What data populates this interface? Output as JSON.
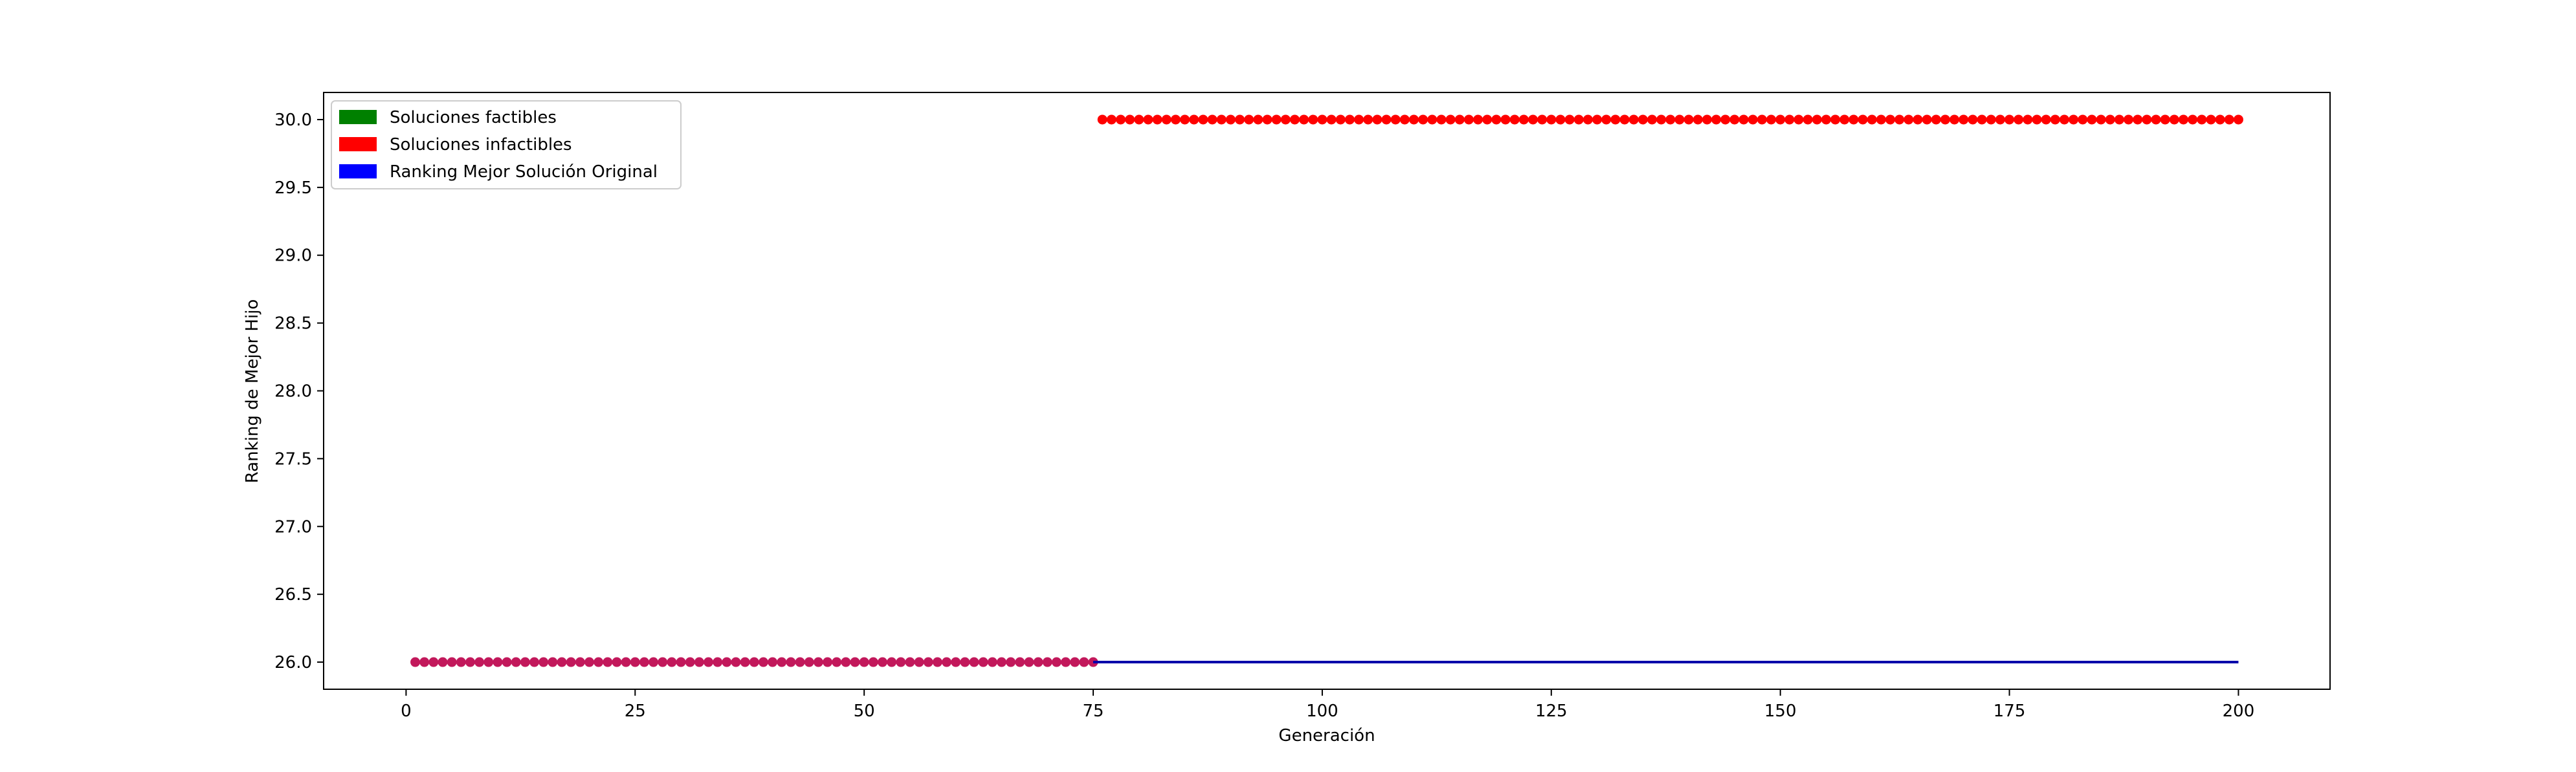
{
  "chart_data": {
    "type": "scatter",
    "title": "",
    "xlabel": "Generación",
    "ylabel": "Ranking de Mejor Hijo",
    "xlim": [
      -9,
      210
    ],
    "ylim": [
      25.8,
      30.2
    ],
    "xticks": [
      0,
      25,
      50,
      75,
      100,
      125,
      150,
      175,
      200
    ],
    "yticks": [
      26.0,
      26.5,
      27.0,
      27.5,
      28.0,
      28.5,
      29.0,
      29.5,
      30.0
    ],
    "ytick_labels": [
      "26.0",
      "26.5",
      "27.0",
      "27.5",
      "28.0",
      "28.5",
      "29.0",
      "29.5",
      "30.0"
    ],
    "grid": false,
    "legend_position": "top-left",
    "legend": [
      {
        "label": "Soluciones factibles",
        "color": "#008000"
      },
      {
        "label": "Soluciones infactibles",
        "color": "#ff0000"
      },
      {
        "label": "Ranking Mejor Solución Original",
        "color": "#0000ff"
      }
    ],
    "series": [
      {
        "kind": "points",
        "color": "#c2185b",
        "x_range": [
          1,
          75
        ],
        "y": 26.0
      },
      {
        "kind": "points",
        "color": "#ff0000",
        "x_range": [
          76,
          200
        ],
        "y": 30.0
      },
      {
        "kind": "line",
        "color": "#0000aa",
        "x_range": [
          75,
          200
        ],
        "y": 26.0
      }
    ]
  }
}
